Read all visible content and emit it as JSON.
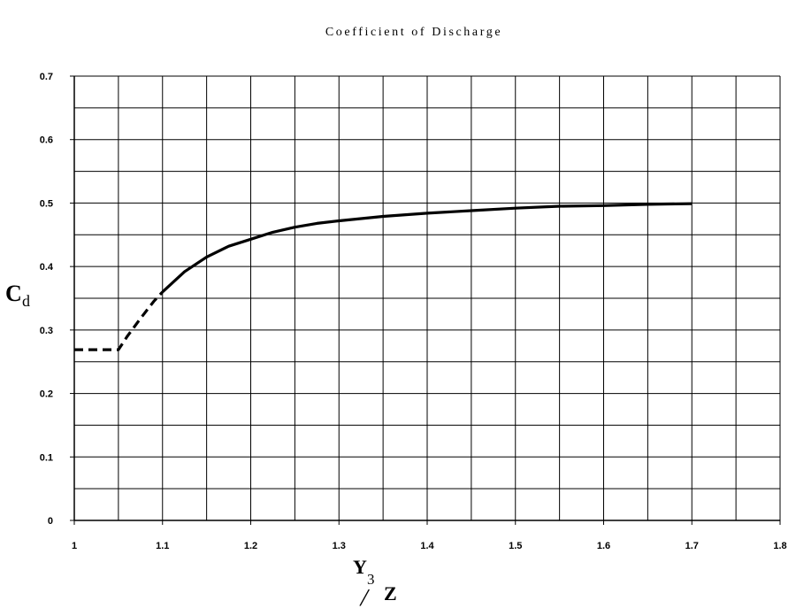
{
  "chart_data": {
    "type": "line",
    "title": "Coefficient of Discharge",
    "xlabel": {
      "main": "Y",
      "subscript": "3",
      "separator": "/",
      "denominator": "Z"
    },
    "ylabel": {
      "main": "C",
      "subscript": "d"
    },
    "xlim": [
      1,
      1.8
    ],
    "ylim": [
      0,
      0.7
    ],
    "x_ticks": [
      "1",
      "1.1",
      "1.2",
      "1.3",
      "1.4",
      "1.5",
      "1.6",
      "1.7",
      "1.8"
    ],
    "y_ticks": [
      "0",
      "0.1",
      "0.2",
      "0.3",
      "0.4",
      "0.5",
      "0.6",
      "0.7"
    ],
    "x_minor_step": 0.05,
    "y_minor_step": 0.05,
    "grid": true,
    "series": [
      {
        "style": "dashed",
        "x": [
          1.0,
          1.05,
          1.06,
          1.075,
          1.09,
          1.1
        ],
        "y": [
          0.269,
          0.269,
          0.29,
          0.318,
          0.345,
          0.36
        ]
      },
      {
        "style": "solid",
        "x": [
          1.1,
          1.125,
          1.15,
          1.175,
          1.2,
          1.225,
          1.25,
          1.275,
          1.3,
          1.35,
          1.4,
          1.45,
          1.5,
          1.55,
          1.6,
          1.65,
          1.7
        ],
        "y": [
          0.36,
          0.392,
          0.415,
          0.432,
          0.443,
          0.454,
          0.462,
          0.468,
          0.472,
          0.479,
          0.484,
          0.488,
          0.492,
          0.495,
          0.496,
          0.498,
          0.499
        ]
      }
    ]
  }
}
